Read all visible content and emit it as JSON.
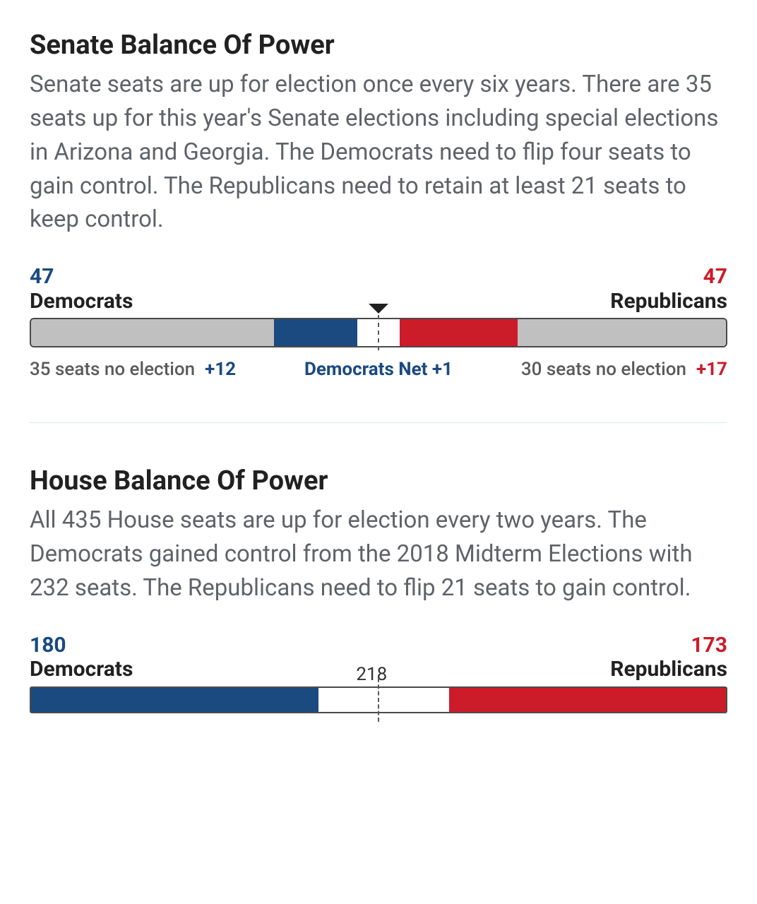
{
  "colors": {
    "dem": "#1a4a80",
    "rep": "#cc1b29",
    "gray": "#c0c0c0",
    "white": "#ffffff",
    "text_muted": "#5a5a5a"
  },
  "senate": {
    "title": "Senate Balance Of Power",
    "description": "Senate seats are up for election once every six years. There are 35 seats up for this year's Senate elections including special elections in Arizona and Georgia. The Democrats need to flip four seats to gain control. The Republicans need to retain at least 21 seats to keep control.",
    "dem_count": "47",
    "dem_label": "Democrats",
    "rep_count": "47",
    "rep_label": "Republicans",
    "total_seats": 100,
    "bar": {
      "segments": [
        {
          "key": "dem_noelection",
          "width_pct": 35,
          "color": "#c0c0c0"
        },
        {
          "key": "dem_gain",
          "width_pct": 12,
          "color": "#1a4a80"
        },
        {
          "key": "gap_left",
          "width_pct": 3,
          "color": "#ffffff"
        },
        {
          "key": "gap_right",
          "width_pct": 3,
          "color": "#ffffff"
        },
        {
          "key": "rep_gain",
          "width_pct": 17,
          "color": "#cc1b29"
        },
        {
          "key": "rep_noelection",
          "width_pct": 30,
          "color": "#c0c0c0"
        }
      ]
    },
    "below": {
      "left_text": "35 seats no election",
      "left_plus": "+12",
      "center_text": "Democrats Net +1",
      "right_text": "30 seats no election",
      "right_plus": "+17",
      "left_width_pct": 35,
      "center_width_pct": 30,
      "right_width_pct": 35
    }
  },
  "house": {
    "title": "House Balance Of Power",
    "description": "All 435 House seats are up for election every two years. The Democrats gained control from the 2018 Midterm Elections with 232 seats. The Republicans need to flip 21 seats to gain control.",
    "dem_count": "180",
    "dem_label": "Democrats",
    "rep_count": "173",
    "rep_label": "Republicans",
    "center_label": "218",
    "total_seats": 435,
    "bar": {
      "segments": [
        {
          "key": "dem",
          "width_pct": 41.4,
          "color": "#1a4a80"
        },
        {
          "key": "open",
          "width_pct": 18.8,
          "color": "#ffffff"
        },
        {
          "key": "rep",
          "width_pct": 39.8,
          "color": "#cc1b29"
        }
      ]
    }
  }
}
